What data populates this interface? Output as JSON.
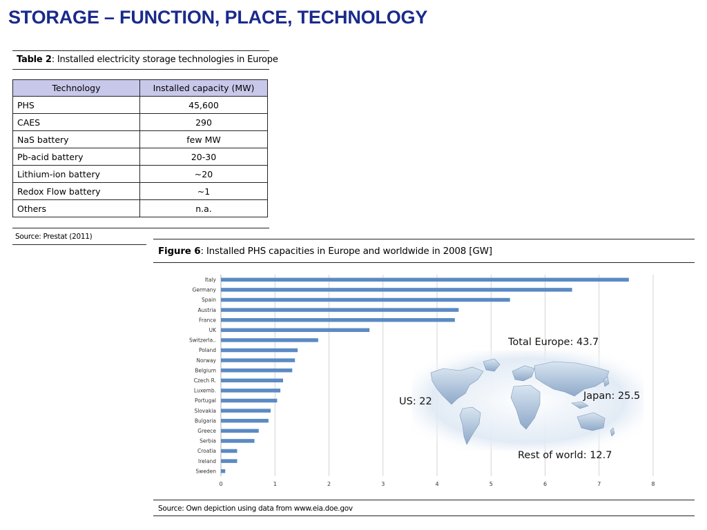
{
  "slide": {
    "title": "STORAGE – FUNCTION, PLACE, TECHNOLOGY"
  },
  "table2": {
    "caption_bold": "Table 2",
    "caption_rest": ": Installed electricity storage technologies in Europe",
    "headers": [
      "Technology",
      "Installed capacity (MW)"
    ],
    "rows": [
      [
        "PHS",
        "45,600"
      ],
      [
        "CAES",
        "290"
      ],
      [
        "NaS battery",
        "few MW"
      ],
      [
        "Pb-acid battery",
        "20-30"
      ],
      [
        "Lithium-ion battery",
        "~20"
      ],
      [
        "Redox Flow battery",
        "~1"
      ],
      [
        "Others",
        "n.a."
      ]
    ],
    "source": "Source: Prestat (2011)",
    "header_bg": "#c8c8ea"
  },
  "figure6": {
    "caption_bold": "Figure 6",
    "caption_rest": ": Installed PHS capacities in Europe and worldwide in 2008 [GW]",
    "source": "Source: Own depiction using data from www.eia.doe.gov",
    "annotations": {
      "total_europe": "Total Europe: 43.7",
      "us": "US: 22",
      "japan": "Japan: 25.5",
      "rest_of_world": "Rest of world: 12.7"
    },
    "map_icon": "world-map-icon"
  },
  "chart_data": {
    "type": "bar",
    "orientation": "horizontal",
    "categories": [
      "Italy",
      "Germany",
      "Spain",
      "Austria",
      "France",
      "UK",
      "Switzerla..",
      "Poland",
      "Norway",
      "Belgium",
      "Czech R.",
      "Luxemb.",
      "Portugal",
      "Slovakia",
      "Bulgaria",
      "Greece",
      "Serbia",
      "Croatia",
      "Ireland",
      "Sweden"
    ],
    "values": [
      7.55,
      6.5,
      5.35,
      4.4,
      4.33,
      2.75,
      1.8,
      1.42,
      1.37,
      1.32,
      1.15,
      1.1,
      1.04,
      0.92,
      0.88,
      0.7,
      0.62,
      0.3,
      0.3,
      0.08
    ],
    "xlim": [
      0,
      8
    ],
    "xticks": [
      "0",
      "1",
      "2",
      "3",
      "4",
      "5",
      "6",
      "7",
      "8"
    ],
    "grid": true,
    "bar_color": "#5b8ac4"
  }
}
